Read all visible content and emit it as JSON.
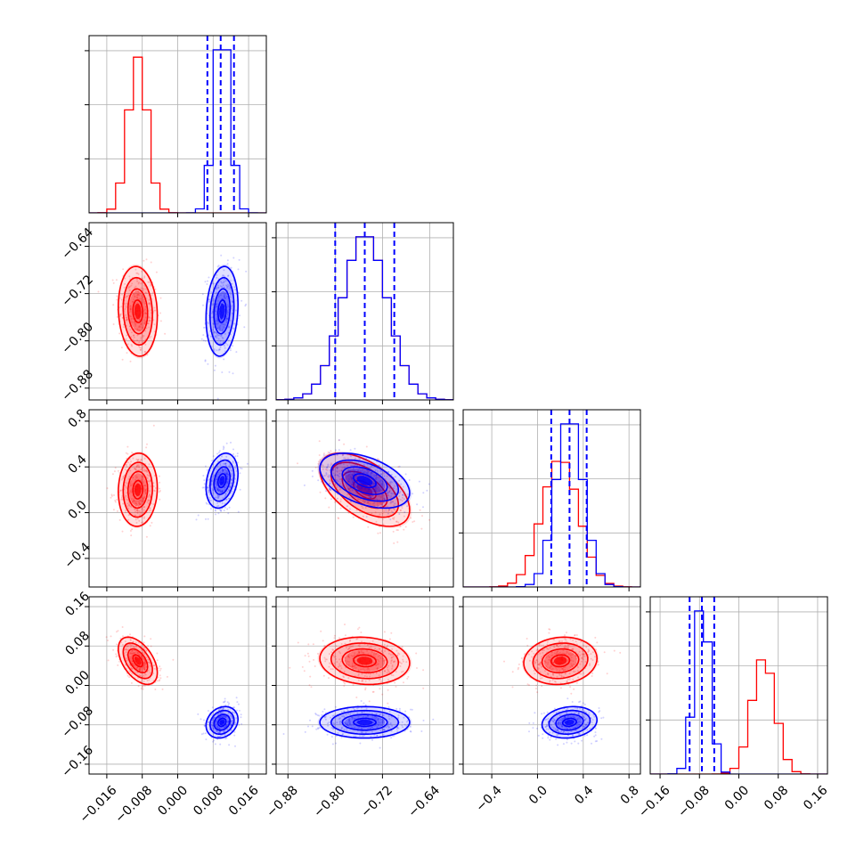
{
  "chart_data": {
    "type": "corner",
    "title": "",
    "grid": true,
    "colors": {
      "series_a": "#ff0000",
      "series_b": "#0000ff"
    },
    "series": [
      {
        "color": "#ff0000",
        "mean": [
          -0.009,
          -0.75,
          0.2,
          0.05
        ],
        "sd": [
          0.0022,
          0.038,
          0.16,
          0.024
        ]
      },
      {
        "color": "#0000ff",
        "mean": [
          0.01,
          -0.75,
          0.28,
          -0.075
        ],
        "sd": [
          0.0018,
          0.038,
          0.12,
          0.016
        ]
      }
    ],
    "correlations": [
      {
        "i": 1,
        "j": 0,
        "rho": [
          -0.1,
          0.15
        ]
      },
      {
        "i": 2,
        "j": 0,
        "rho": [
          0.05,
          0.25
        ]
      },
      {
        "i": 2,
        "j": 1,
        "rho": [
          -0.55,
          -0.45
        ]
      },
      {
        "i": 3,
        "j": 0,
        "rho": [
          -0.5,
          0.2
        ]
      },
      {
        "i": 3,
        "j": 1,
        "rho": [
          -0.1,
          0.0
        ]
      },
      {
        "i": 3,
        "j": 2,
        "rho": [
          0.1,
          0.15
        ]
      }
    ],
    "parameters": [
      {
        "range": [
          -0.02,
          0.02
        ],
        "ticks": [
          -0.016,
          -0.008,
          0.0,
          0.008,
          0.016
        ],
        "tick_labels": [
          "−0.016",
          "−0.008",
          "0.000",
          "0.008",
          "0.016"
        ]
      },
      {
        "range": [
          -0.9,
          -0.6
        ],
        "ticks": [
          -0.88,
          -0.8,
          -0.72,
          -0.64
        ],
        "tick_labels": [
          "−0.88",
          "−0.80",
          "−0.72",
          "−0.64"
        ]
      },
      {
        "range": [
          -0.65,
          0.9
        ],
        "ticks": [
          -0.4,
          0.0,
          0.4,
          0.8
        ],
        "tick_labels": [
          "−0.4",
          "0.0",
          "0.4",
          "0.8"
        ]
      },
      {
        "range": [
          -0.18,
          0.18
        ],
        "ticks": [
          -0.16,
          -0.08,
          0.0,
          0.08,
          0.16
        ],
        "tick_labels": [
          "−0.16",
          "−0.08",
          "0.00",
          "0.08",
          "0.16"
        ]
      }
    ],
    "quantile_lines": {
      "color": "#0000ff",
      "style": "dashed",
      "values": [
        [
          0.0067,
          0.0097,
          0.0127
        ],
        [
          -0.8,
          -0.75,
          -0.7
        ],
        [
          0.12,
          0.28,
          0.43
        ],
        [
          -0.1,
          -0.075,
          -0.05
        ]
      ]
    }
  }
}
